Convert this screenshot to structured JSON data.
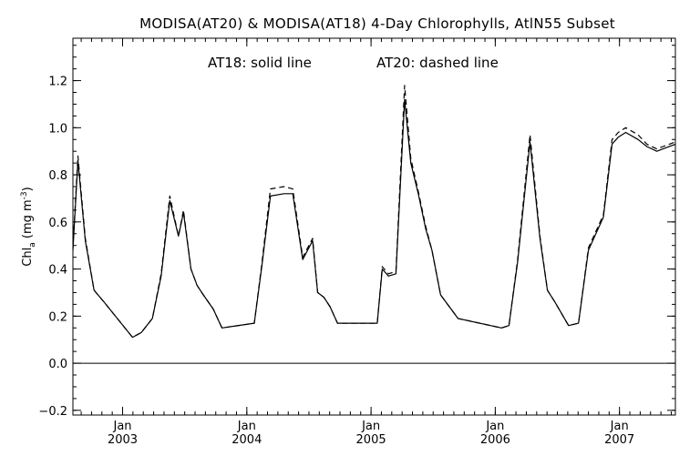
{
  "chart_data": {
    "type": "line",
    "title": "MODISA(AT20) & MODISA(AT18) 4-Day Chlorophylls, AtlN55 Subset",
    "annotation": {
      "solid": "AT18: solid line",
      "dashed": "AT20: dashed line"
    },
    "ylabel": {
      "main": "Chl",
      "sub": "a",
      "unit_open": " (mg m",
      "unit_sup": "-3",
      "unit_close": ")"
    },
    "xlim": [
      2002.6,
      2007.45
    ],
    "ylim": [
      -0.22,
      1.38
    ],
    "y_ticks": [
      -0.2,
      0.0,
      0.2,
      0.4,
      0.6,
      0.8,
      1.0,
      1.2
    ],
    "y_tick_labels": [
      "−0.2",
      "0.0",
      "0.2",
      "0.4",
      "0.6",
      "0.8",
      "1.0",
      "1.2"
    ],
    "x_ticks": [
      {
        "x": 2003.0,
        "month": "Jan",
        "year": "2003"
      },
      {
        "x": 2004.0,
        "month": "Jan",
        "year": "2004"
      },
      {
        "x": 2005.0,
        "month": "Jan",
        "year": "2005"
      },
      {
        "x": 2006.0,
        "month": "Jan",
        "year": "2006"
      },
      {
        "x": 2007.0,
        "month": "Jan",
        "year": "2007"
      }
    ],
    "minor_ticks_per_year": 12,
    "zero_line": true,
    "series": [
      {
        "name": "AT18",
        "style": "solid",
        "x": [
          2002.6,
          2002.64,
          2002.7,
          2002.77,
          2002.85,
          2003.08,
          2003.15,
          2003.24,
          2003.31,
          2003.38,
          2003.45,
          2003.49,
          2003.55,
          2003.6,
          2003.65,
          2003.73,
          2003.8,
          2004.06,
          2004.12,
          2004.19,
          2004.3,
          2004.37,
          2004.45,
          2004.53,
          2004.57,
          2004.62,
          2004.67,
          2004.73,
          2005.05,
          2005.09,
          2005.14,
          2005.2,
          2005.27,
          2005.32,
          2005.38,
          2005.44,
          2005.49,
          2005.56,
          2005.63,
          2005.7,
          2006.05,
          2006.11,
          2006.18,
          2006.28,
          2006.36,
          2006.42,
          2006.48,
          2006.59,
          2006.67,
          2006.75,
          2006.87,
          2006.94,
          2006.99,
          2007.05,
          2007.15,
          2007.22,
          2007.3,
          2007.35,
          2007.45
        ],
        "y": [
          0.48,
          0.86,
          0.52,
          0.31,
          0.26,
          0.11,
          0.13,
          0.19,
          0.37,
          0.69,
          0.54,
          0.64,
          0.4,
          0.33,
          0.29,
          0.23,
          0.15,
          0.17,
          0.41,
          0.71,
          0.72,
          0.72,
          0.44,
          0.52,
          0.3,
          0.28,
          0.24,
          0.17,
          0.17,
          0.4,
          0.37,
          0.38,
          1.12,
          0.85,
          0.72,
          0.57,
          0.48,
          0.29,
          0.24,
          0.19,
          0.15,
          0.16,
          0.43,
          0.94,
          0.53,
          0.31,
          0.26,
          0.16,
          0.17,
          0.48,
          0.62,
          0.93,
          0.96,
          0.98,
          0.95,
          0.92,
          0.9,
          0.91,
          0.93
        ]
      },
      {
        "name": "AT20",
        "style": "dashed",
        "x": [
          2002.6,
          2002.64,
          2002.7,
          2002.77,
          2002.85,
          2003.08,
          2003.15,
          2003.24,
          2003.31,
          2003.38,
          2003.45,
          2003.49,
          2003.55,
          2003.6,
          2003.65,
          2003.73,
          2003.8,
          2004.06,
          2004.12,
          2004.19,
          2004.3,
          2004.37,
          2004.45,
          2004.53,
          2004.57,
          2004.62,
          2004.67,
          2004.73,
          2005.05,
          2005.09,
          2005.14,
          2005.2,
          2005.27,
          2005.32,
          2005.38,
          2005.44,
          2005.49,
          2005.56,
          2005.63,
          2005.7,
          2006.05,
          2006.11,
          2006.18,
          2006.28,
          2006.36,
          2006.42,
          2006.48,
          2006.59,
          2006.67,
          2006.75,
          2006.87,
          2006.94,
          2006.99,
          2007.05,
          2007.15,
          2007.22,
          2007.3,
          2007.35,
          2007.45
        ],
        "y": [
          0.49,
          0.88,
          0.53,
          0.31,
          0.26,
          0.11,
          0.13,
          0.19,
          0.38,
          0.71,
          0.54,
          0.65,
          0.4,
          0.33,
          0.29,
          0.23,
          0.15,
          0.17,
          0.42,
          0.74,
          0.75,
          0.74,
          0.45,
          0.53,
          0.3,
          0.28,
          0.24,
          0.17,
          0.17,
          0.41,
          0.38,
          0.39,
          1.18,
          0.87,
          0.73,
          0.58,
          0.48,
          0.29,
          0.24,
          0.19,
          0.15,
          0.16,
          0.44,
          0.97,
          0.54,
          0.31,
          0.26,
          0.16,
          0.17,
          0.49,
          0.63,
          0.95,
          0.98,
          1.0,
          0.97,
          0.93,
          0.91,
          0.92,
          0.94
        ]
      }
    ]
  }
}
